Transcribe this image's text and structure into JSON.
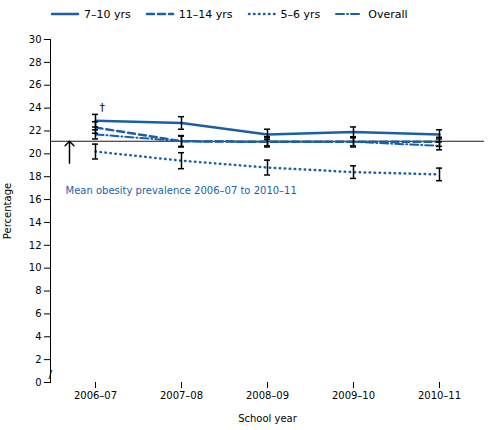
{
  "chart_data": {
    "type": "line",
    "categories": [
      "2006–07",
      "2007–08",
      "2008–09",
      "2009–10",
      "2010–11"
    ],
    "series": [
      {
        "name": "7–10 yrs",
        "color": "#1a5fa8",
        "line_style": "solid",
        "values": [
          22.9,
          22.7,
          21.7,
          21.9,
          21.7
        ],
        "yerr_lo": [
          0.55,
          0.55,
          0.45,
          0.45,
          0.4
        ],
        "yerr_hi": [
          0.55,
          0.55,
          0.45,
          0.45,
          0.4
        ]
      },
      {
        "name": "11–14 yrs",
        "color": "#1a5fa8",
        "line_style": "dashed",
        "values": [
          22.3,
          21.1,
          21.05,
          21.05,
          21.05
        ],
        "yerr_lo": [
          0.5,
          0.5,
          0.45,
          0.45,
          0.4
        ],
        "yerr_hi": [
          0.5,
          0.5,
          0.45,
          0.45,
          0.4
        ]
      },
      {
        "name": "5–6 yrs",
        "color": "#1a5fa8",
        "line_style": "dotted",
        "values": [
          20.2,
          19.4,
          18.8,
          18.4,
          18.2
        ],
        "yerr_lo": [
          0.65,
          0.7,
          0.65,
          0.55,
          0.55
        ],
        "yerr_hi": [
          0.65,
          0.7,
          0.65,
          0.55,
          0.55
        ]
      },
      {
        "name": "Overall",
        "color": "#1a5fa8",
        "line_style": "dashdot",
        "values": [
          21.7,
          21.1,
          21.05,
          21.05,
          20.7
        ],
        "yerr_lo": [
          0.4,
          0.45,
          0.35,
          0.35,
          0.35
        ],
        "yerr_hi": [
          0.4,
          0.45,
          0.35,
          0.35,
          0.35
        ]
      }
    ],
    "mean_line": 21.1,
    "annotations": [
      {
        "text": "Mean obesity prevalence 2006–07 to 2010–11",
        "color": "#1a5fa8"
      },
      {
        "text": "†"
      },
      {
        "text": "/"
      }
    ],
    "xlabel": "School year",
    "ylabel": "Percentage",
    "ylim": [
      0,
      30
    ],
    "yticks": [
      0,
      2,
      4,
      6,
      8,
      10,
      12,
      14,
      16,
      18,
      20,
      22,
      24,
      26,
      28,
      30
    ],
    "grid": false
  }
}
